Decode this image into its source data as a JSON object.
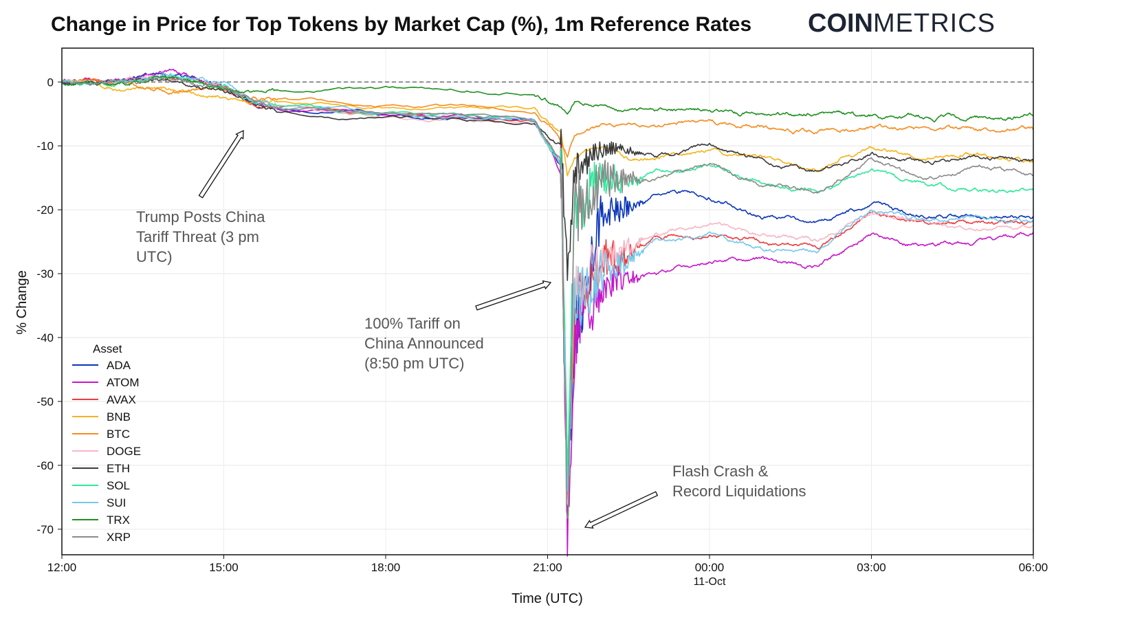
{
  "chart_data": {
    "type": "line",
    "title": "Change in Price for Top Tokens by Market Cap (%), 1m Reference Rates",
    "brand": {
      "bold": "COIN",
      "light": "METRICS"
    },
    "xlabel": "Time (UTC)",
    "ylabel": "% Change",
    "ylim": [
      -74,
      5.3
    ],
    "xlim": [
      "10-Oct 12:00",
      "11-Oct 06:00"
    ],
    "grid": true,
    "yticks": [
      0,
      -10,
      -20,
      -30,
      -40,
      -50,
      -60,
      -70
    ],
    "xticks": [
      {
        "t": "10-Oct 12:00",
        "label": "12:00",
        "sub": ""
      },
      {
        "t": "10-Oct 15:00",
        "label": "15:00",
        "sub": ""
      },
      {
        "t": "10-Oct 18:00",
        "label": "18:00",
        "sub": ""
      },
      {
        "t": "10-Oct 21:00",
        "label": "21:00",
        "sub": ""
      },
      {
        "t": "11-Oct 00:00",
        "label": "00:00",
        "sub": "11-Oct"
      },
      {
        "t": "11-Oct 03:00",
        "label": "03:00",
        "sub": ""
      },
      {
        "t": "11-Oct 06:00",
        "label": "06:00",
        "sub": ""
      }
    ],
    "reference_line": 0,
    "legend": {
      "title": "Asset",
      "placement": "lower-left"
    },
    "x": [
      "10-Oct 12:00",
      "10-Oct 13:00",
      "10-Oct 14:00",
      "10-Oct 15:00",
      "10-Oct 15:30",
      "10-Oct 16:00",
      "10-Oct 18:00",
      "10-Oct 19:30",
      "10-Oct 20:45",
      "10-Oct 21:15",
      "10-Oct 21:22",
      "10-Oct 21:30",
      "10-Oct 22:00",
      "10-Oct 22:30",
      "10-Oct 23:00",
      "11-Oct 00:00",
      "11-Oct 01:00",
      "11-Oct 02:00",
      "11-Oct 03:00",
      "11-Oct 04:00",
      "11-Oct 05:00",
      "11-Oct 06:00"
    ],
    "series": [
      {
        "name": "ADA",
        "color": "#0b35b8",
        "values": [
          0,
          0,
          1,
          -0.5,
          -3,
          -4,
          -5,
          -5.5,
          -6,
          -13,
          -65,
          -40,
          -20,
          -20,
          -17,
          -18,
          -21,
          -22,
          -19,
          -21,
          -21,
          -21
        ]
      },
      {
        "name": "ATOM",
        "color": "#c516c9",
        "values": [
          0,
          0,
          1.5,
          -0.5,
          -3,
          -4,
          -5,
          -5.5,
          -6,
          -14,
          -68,
          -40,
          -32,
          -30,
          -30,
          -28,
          -28,
          -29,
          -24,
          -26,
          -25,
          -23.5
        ]
      },
      {
        "name": "AVAX",
        "color": "#ee3a3f",
        "values": [
          0,
          0,
          1,
          -0.5,
          -3,
          -4,
          -5,
          -5.5,
          -6,
          -13,
          -65,
          -35,
          -28,
          -27,
          -24,
          -24,
          -25,
          -26,
          -20,
          -22,
          -22,
          -22
        ]
      },
      {
        "name": "BNB",
        "color": "#f5b31b",
        "values": [
          0,
          -1,
          -1.5,
          -2,
          -3,
          -3,
          -4,
          -4.5,
          -4.5,
          -8,
          -15,
          -12,
          -10,
          -12,
          -12,
          -11,
          -12,
          -14,
          -10.5,
          -12,
          -11.5,
          -12.5
        ]
      },
      {
        "name": "BTC",
        "color": "#f68b1f",
        "values": [
          0,
          0,
          -1,
          -1,
          -2.5,
          -3,
          -3.5,
          -4,
          -4.5,
          -9,
          -11,
          -8,
          -7,
          -7,
          -7,
          -6,
          -7,
          -8,
          -7,
          -7.5,
          -7.5,
          -7.5
        ]
      },
      {
        "name": "DOGE",
        "color": "#f7b6c6",
        "values": [
          0,
          0,
          1,
          -0.5,
          -3,
          -4,
          -5.5,
          -6,
          -6.5,
          -13,
          -65,
          -33,
          -28,
          -26,
          -24,
          -22,
          -24,
          -25,
          -20,
          -22,
          -23,
          -22.5
        ]
      },
      {
        "name": "ETH",
        "color": "#3a3a3a",
        "values": [
          0,
          0,
          0.5,
          -1,
          -3,
          -5,
          -5.5,
          -6,
          -6.5,
          -10,
          -30,
          -14,
          -11,
          -11,
          -12,
          -10,
          -12,
          -14,
          -11,
          -12.5,
          -12,
          -12.5
        ]
      },
      {
        "name": "SOL",
        "color": "#2ee89a",
        "values": [
          0,
          0,
          1,
          -0.5,
          -3,
          -3.5,
          -5,
          -5.5,
          -6,
          -13,
          -60,
          -20,
          -15,
          -16,
          -14,
          -13,
          -16,
          -17,
          -14,
          -16,
          -17,
          -17
        ]
      },
      {
        "name": "SUI",
        "color": "#76c8ea",
        "values": [
          0,
          0,
          1,
          -0.5,
          -3,
          -4,
          -5,
          -5.5,
          -6,
          -13,
          -70,
          -35,
          -30,
          -28,
          -25,
          -24,
          -26,
          -26,
          -20,
          -22,
          -21,
          -22
        ]
      },
      {
        "name": "TRX",
        "color": "#1f8f1f",
        "values": [
          0,
          0,
          0.5,
          -1,
          -2,
          -1.5,
          -1,
          -1.5,
          -2,
          -4,
          -5,
          -3,
          -4,
          -4.5,
          -4.5,
          -4.5,
          -5,
          -5,
          -5.5,
          -5.5,
          -5.5,
          -5.3
        ]
      },
      {
        "name": "XRP",
        "color": "#8a8a8a",
        "values": [
          0,
          0,
          0.5,
          -1,
          -3,
          -4,
          -5,
          -5.5,
          -6,
          -12,
          -70,
          -20,
          -15,
          -15,
          -15,
          -13,
          -16,
          -17,
          -12,
          -15,
          -13,
          -14.5
        ]
      }
    ],
    "annotations": [
      {
        "lines": [
          "Trump Posts China",
          "Tariff Threat (3 pm",
          "UTC)"
        ]
      },
      {
        "lines": [
          "100% Tariff on",
          "China Announced",
          "(8:50 pm UTC)"
        ]
      },
      {
        "lines": [
          "Flash Crash &",
          "Record Liquidations"
        ]
      }
    ]
  }
}
